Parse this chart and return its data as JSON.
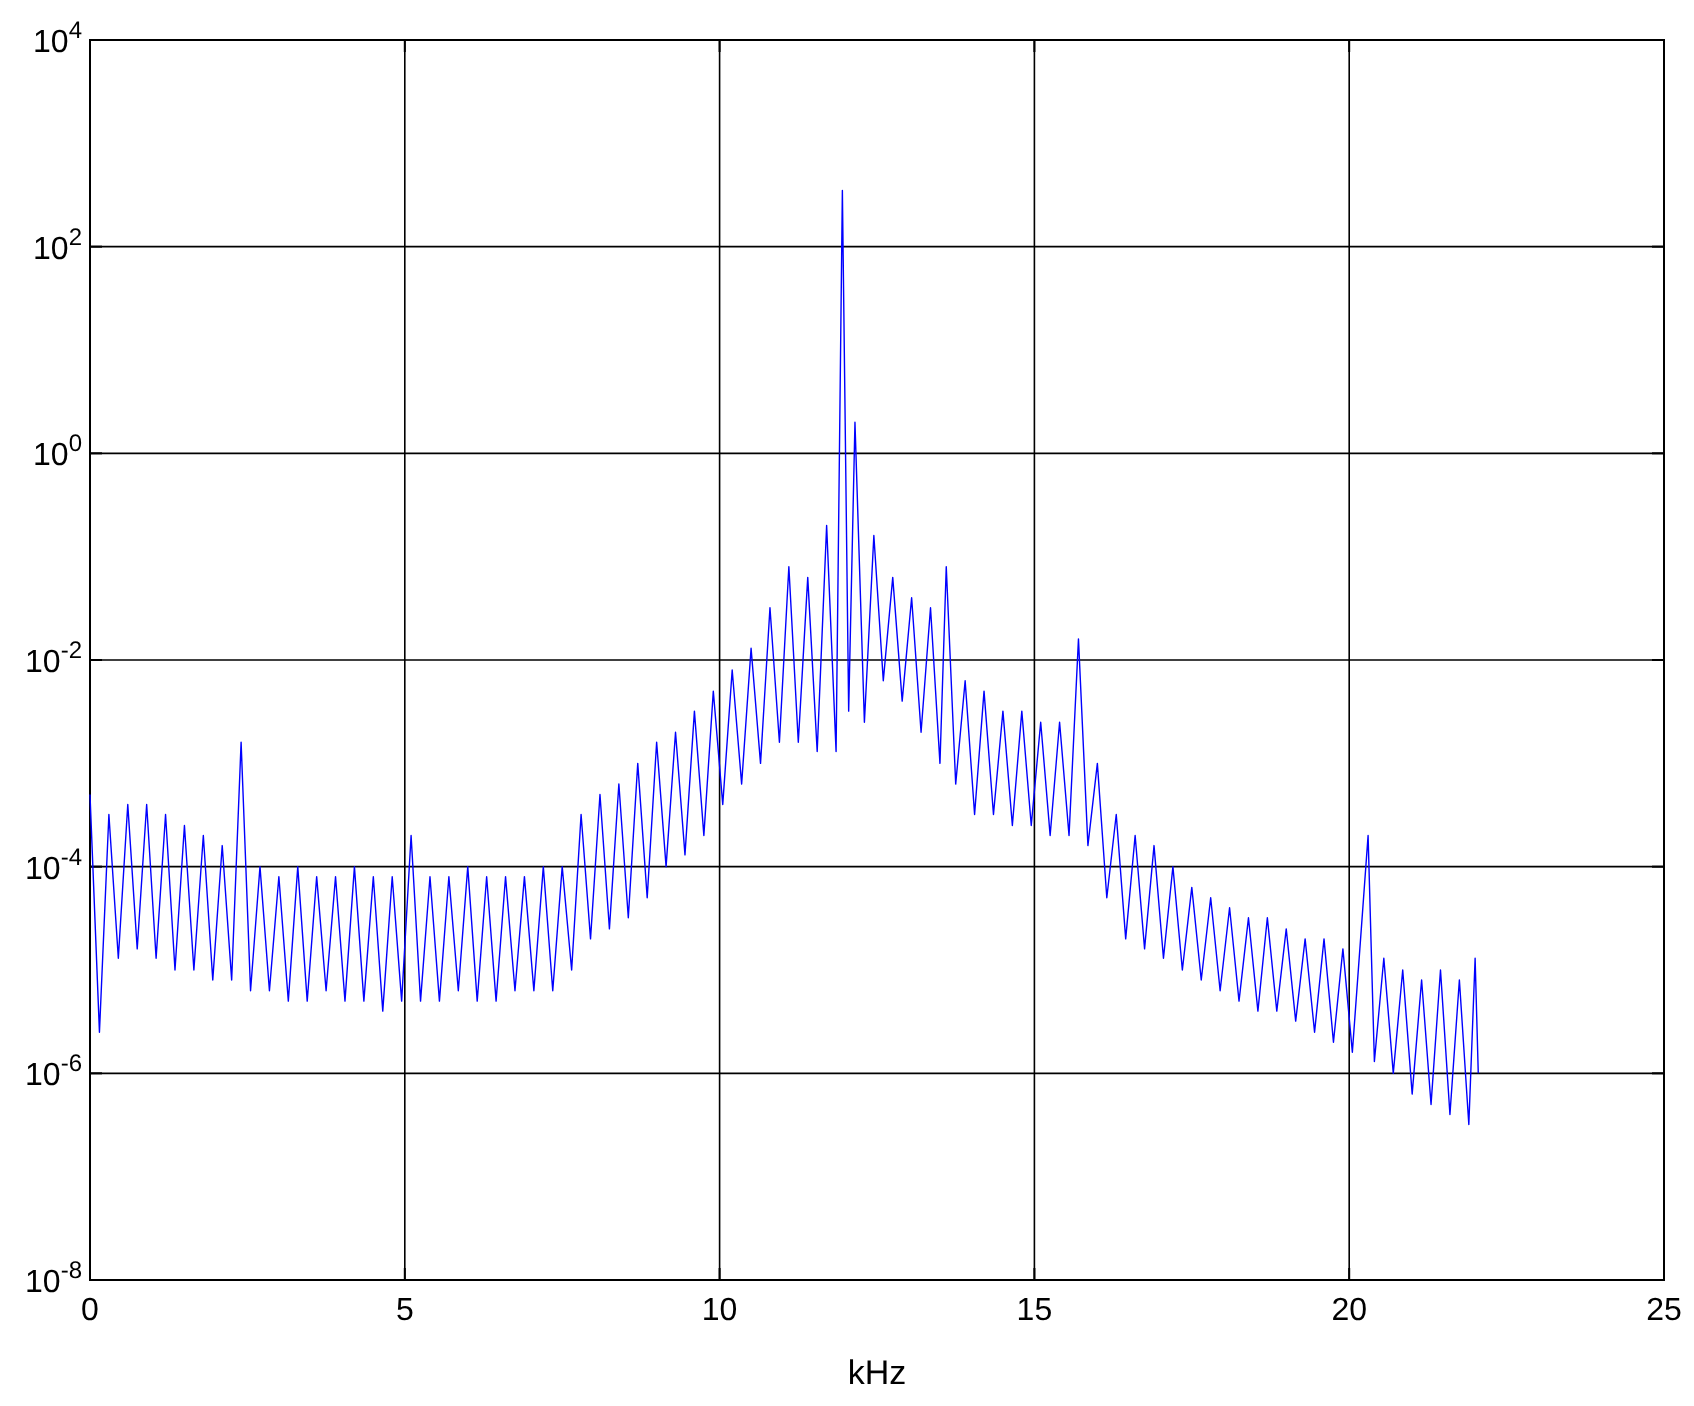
{
  "chart_data": {
    "type": "line",
    "xlabel": "kHz",
    "log": "y",
    "grid": true,
    "xlim": [
      0,
      25
    ],
    "xticks": [
      0,
      5,
      10,
      15,
      20,
      25
    ],
    "ylim": [
      1e-08,
      10000
    ],
    "yticks": [
      {
        "value": 1e-08,
        "label": "10$^{-8}$"
      },
      {
        "value": 1e-06,
        "label": "10$^{-6}$"
      },
      {
        "value": 0.0001,
        "label": "10$^{-4}$"
      },
      {
        "value": 0.01,
        "label": "10$^{-2}$"
      },
      {
        "value": 1,
        "label": "10$^{0}$"
      },
      {
        "value": 100,
        "label": "10$^{2}$"
      },
      {
        "value": 10000,
        "label": "10$^{4}$"
      }
    ],
    "x": [
      0,
      0.15,
      0.3,
      0.45,
      0.6,
      0.75,
      0.9,
      1.05,
      1.2,
      1.35,
      1.5,
      1.65,
      1.8,
      1.95,
      2.1,
      2.25,
      2.4,
      2.55,
      2.7,
      2.85,
      3.0,
      3.15,
      3.3,
      3.45,
      3.6,
      3.75,
      3.9,
      4.05,
      4.2,
      4.35,
      4.5,
      4.65,
      4.8,
      4.95,
      5.1,
      5.25,
      5.4,
      5.55,
      5.7,
      5.85,
      6.0,
      6.15,
      6.3,
      6.45,
      6.6,
      6.75,
      6.9,
      7.05,
      7.2,
      7.35,
      7.5,
      7.65,
      7.8,
      7.95,
      8.1,
      8.25,
      8.4,
      8.55,
      8.7,
      8.85,
      9.0,
      9.15,
      9.3,
      9.45,
      9.6,
      9.75,
      9.9,
      10.05,
      10.2,
      10.35,
      10.5,
      10.65,
      10.8,
      10.95,
      11.1,
      11.25,
      11.4,
      11.55,
      11.7,
      11.85,
      11.95,
      12.05,
      12.15,
      12.3,
      12.45,
      12.6,
      12.75,
      12.9,
      13.05,
      13.2,
      13.35,
      13.5,
      13.6,
      13.75,
      13.9,
      14.05,
      14.2,
      14.35,
      14.5,
      14.65,
      14.8,
      14.95,
      15.1,
      15.25,
      15.4,
      15.55,
      15.7,
      15.85,
      16.0,
      16.15,
      16.3,
      16.45,
      16.6,
      16.75,
      16.9,
      17.05,
      17.2,
      17.35,
      17.5,
      17.65,
      17.8,
      17.95,
      18.1,
      18.25,
      18.4,
      18.55,
      18.7,
      18.85,
      19.0,
      19.15,
      19.3,
      19.45,
      19.6,
      19.75,
      19.9,
      20.05,
      20.3,
      20.4,
      20.55,
      20.7,
      20.85,
      21.0,
      21.15,
      21.3,
      21.45,
      21.6,
      21.75,
      21.9,
      22.0,
      22.05
    ],
    "series": [
      {
        "color": "#0000ff",
        "values": [
          0.0005,
          2.5e-06,
          0.00032,
          1.3e-05,
          0.0004,
          1.6e-05,
          0.0004,
          1.3e-05,
          0.00032,
          1e-05,
          0.00025,
          1e-05,
          0.0002,
          8e-06,
          0.00016,
          8e-06,
          0.0016,
          6.3e-06,
          0.0001,
          6.3e-06,
          8e-05,
          5e-06,
          0.0001,
          5e-06,
          8e-05,
          6.3e-06,
          8e-05,
          5e-06,
          0.0001,
          5e-06,
          8e-05,
          4e-06,
          8e-05,
          5e-06,
          0.0002,
          5e-06,
          8e-05,
          5e-06,
          8e-05,
          6.3e-06,
          0.0001,
          5e-06,
          8e-05,
          5e-06,
          8e-05,
          6.3e-06,
          8e-05,
          6.3e-06,
          0.0001,
          6.3e-06,
          0.0001,
          1e-05,
          0.00032,
          2e-05,
          0.0005,
          2.5e-05,
          0.00063,
          3.2e-05,
          0.001,
          5e-05,
          0.0016,
          0.0001,
          0.002,
          0.00013,
          0.0032,
          0.0002,
          0.005,
          0.0004,
          0.008,
          0.00063,
          0.013,
          0.001,
          0.032,
          0.0016,
          0.08,
          0.0016,
          0.063,
          0.0013,
          0.2,
          0.0013,
          350,
          0.0032,
          2,
          0.0025,
          0.16,
          0.0063,
          0.063,
          0.004,
          0.04,
          0.002,
          0.032,
          0.001,
          0.08,
          0.00063,
          0.0063,
          0.00032,
          0.005,
          0.00032,
          0.0032,
          0.00025,
          0.0032,
          0.00025,
          0.0025,
          0.0002,
          0.0025,
          0.0002,
          0.016,
          0.00016,
          0.001,
          5e-05,
          0.00032,
          2e-05,
          0.0002,
          1.6e-05,
          0.00016,
          1.3e-05,
          0.0001,
          1e-05,
          6.3e-05,
          8e-06,
          5e-05,
          6.3e-06,
          4e-05,
          5e-06,
          3.2e-05,
          4e-06,
          3.2e-05,
          4e-06,
          2.5e-05,
          3.2e-06,
          2e-05,
          2.5e-06,
          2e-05,
          2e-06,
          1.6e-05,
          1.6e-06,
          0.0002,
          1.3e-06,
          1.3e-05,
          1e-06,
          1e-05,
          6.3e-07,
          8e-06,
          5e-07,
          1e-05,
          4e-07,
          8e-06,
          3.2e-07,
          1.3e-05,
          1e-06
        ]
      }
    ]
  }
}
